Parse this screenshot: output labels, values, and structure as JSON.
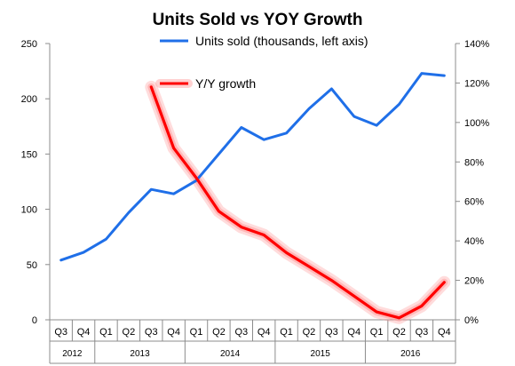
{
  "chart_data": {
    "type": "line",
    "title": "Units Sold vs YOY Growth",
    "x": [
      "Q3",
      "Q4",
      "Q1",
      "Q2",
      "Q3",
      "Q4",
      "Q1",
      "Q2",
      "Q3",
      "Q4",
      "Q1",
      "Q2",
      "Q3",
      "Q4",
      "Q1",
      "Q2",
      "Q3",
      "Q4"
    ],
    "years": [
      {
        "label": "2012",
        "count": 2
      },
      {
        "label": "2013",
        "count": 4
      },
      {
        "label": "2014",
        "count": 4
      },
      {
        "label": "2015",
        "count": 4
      },
      {
        "label": "2016",
        "count": 4
      }
    ],
    "series": [
      {
        "name": "Units sold (thousands, left axis)",
        "axis": "left",
        "color": "#1f6fe8",
        "values": [
          54,
          61,
          73,
          97,
          118,
          114,
          126,
          150,
          174,
          163,
          169,
          191,
          209,
          184,
          176,
          195,
          223,
          221
        ]
      },
      {
        "name": "Y/Y growth",
        "axis": "right",
        "color": "#ff0000",
        "glow": "#ff9a9a",
        "values": [
          null,
          null,
          null,
          null,
          1.18,
          0.87,
          0.72,
          0.55,
          0.47,
          0.43,
          0.34,
          0.27,
          0.2,
          0.12,
          0.04,
          0.01,
          0.07,
          0.19
        ]
      }
    ],
    "y_left": {
      "min": 0,
      "max": 250,
      "ticks": [
        "0",
        "50",
        "100",
        "150",
        "200",
        "250"
      ]
    },
    "y_right": {
      "min": 0,
      "max": 1.4,
      "ticks": [
        "0%",
        "20%",
        "40%",
        "60%",
        "80%",
        "100%",
        "120%",
        "140%"
      ]
    },
    "grid": false,
    "legend_position": "top-center"
  }
}
